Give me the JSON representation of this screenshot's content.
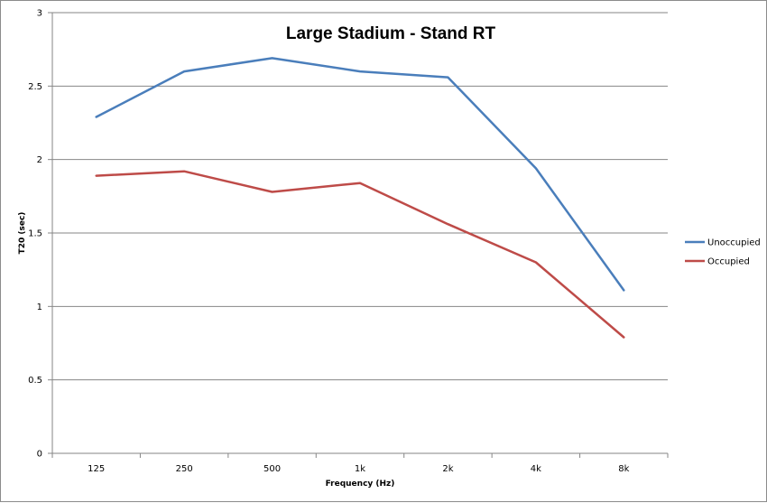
{
  "chart_data": {
    "type": "line",
    "title": "Large Stadium - Stand RT",
    "xlabel": "Frequency (Hz)",
    "ylabel": "T20 (sec)",
    "categories": [
      "125",
      "250",
      "500",
      "1k",
      "2k",
      "4k",
      "8k"
    ],
    "ylim": [
      0,
      3
    ],
    "yticks": [
      "0",
      "0.5",
      "1",
      "1.5",
      "2",
      "2.5",
      "3"
    ],
    "grid": true,
    "legend_position": "right",
    "series": [
      {
        "name": "Unoccupied",
        "color": "#4a7ebb",
        "values": [
          2.29,
          2.6,
          2.69,
          2.6,
          2.56,
          1.94,
          1.11
        ]
      },
      {
        "name": "Occupied",
        "color": "#be4b48",
        "values": [
          1.89,
          1.92,
          1.78,
          1.84,
          1.56,
          1.3,
          0.79
        ]
      }
    ]
  }
}
